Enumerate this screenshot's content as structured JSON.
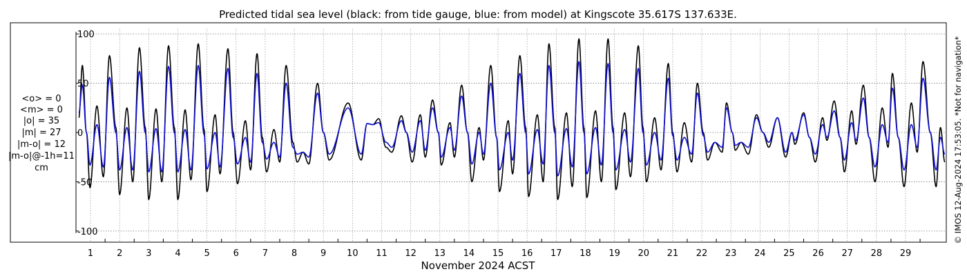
{
  "chart_data": {
    "type": "line",
    "title": "Predicted tidal sea level (black: from tide gauge, blue: from model) at Kingscote 35.617S 137.633E.",
    "xlabel": "November 2024 ACST",
    "ylabel": "",
    "xlim": [
      0.5,
      30.4
    ],
    "ylim": [
      -105,
      105
    ],
    "grid": true,
    "x_ticks": [
      1,
      2,
      3,
      4,
      5,
      6,
      7,
      8,
      9,
      10,
      11,
      12,
      13,
      14,
      15,
      16,
      17,
      18,
      19,
      20,
      21,
      22,
      23,
      24,
      25,
      26,
      27,
      28,
      29
    ],
    "x_tick_labels": [
      "1",
      "2",
      "3",
      "4",
      "5",
      "6",
      "7",
      "8",
      "9",
      "10",
      "11",
      "12",
      "13",
      "14",
      "15",
      "16",
      "17",
      "18",
      "19",
      "20",
      "21",
      "22",
      "23",
      "24",
      "25",
      "26",
      "27",
      "28",
      "29"
    ],
    "y_ticks": [
      100,
      50,
      0,
      -50,
      -100
    ],
    "y_tick_labels": [
      "100",
      "50",
      "0",
      "-50",
      "-100"
    ],
    "series": [
      {
        "color": "#000000",
        "extremes": [
          [
            0.6,
            15
          ],
          [
            0.72,
            68
          ],
          [
            0.86,
            0
          ],
          [
            0.98,
            -56
          ],
          [
            1.22,
            27
          ],
          [
            1.44,
            -45
          ],
          [
            1.65,
            78
          ],
          [
            1.87,
            5
          ],
          [
            2.0,
            -63
          ],
          [
            2.25,
            25
          ],
          [
            2.45,
            -50
          ],
          [
            2.68,
            86
          ],
          [
            2.88,
            5
          ],
          [
            3.0,
            -68
          ],
          [
            3.25,
            24
          ],
          [
            3.45,
            -50
          ],
          [
            3.68,
            88
          ],
          [
            3.88,
            5
          ],
          [
            4.0,
            -68
          ],
          [
            4.25,
            23
          ],
          [
            4.45,
            -48
          ],
          [
            4.7,
            90
          ],
          [
            4.9,
            3
          ],
          [
            5.0,
            -60
          ],
          [
            5.28,
            18
          ],
          [
            5.45,
            -42
          ],
          [
            5.72,
            85
          ],
          [
            5.9,
            0
          ],
          [
            6.05,
            -52
          ],
          [
            6.32,
            12
          ],
          [
            6.5,
            -38
          ],
          [
            6.72,
            80
          ],
          [
            6.9,
            -5
          ],
          [
            7.05,
            -40
          ],
          [
            7.3,
            3
          ],
          [
            7.5,
            -30
          ],
          [
            7.72,
            68
          ],
          [
            7.95,
            -10
          ],
          [
            8.1,
            -30
          ],
          [
            8.3,
            -20
          ],
          [
            8.5,
            -32
          ],
          [
            8.8,
            50
          ],
          [
            9.0,
            0
          ],
          [
            9.2,
            -28
          ],
          [
            9.85,
            30
          ],
          [
            10.3,
            -28
          ],
          [
            10.5,
            9
          ],
          [
            10.7,
            8
          ],
          [
            10.9,
            14
          ],
          [
            11.15,
            -15
          ],
          [
            11.35,
            -20
          ],
          [
            11.68,
            17
          ],
          [
            11.85,
            0
          ],
          [
            12.05,
            -30
          ],
          [
            12.33,
            18
          ],
          [
            12.5,
            -25
          ],
          [
            12.75,
            33
          ],
          [
            12.95,
            0
          ],
          [
            13.05,
            -33
          ],
          [
            13.35,
            10
          ],
          [
            13.5,
            -25
          ],
          [
            13.75,
            48
          ],
          [
            13.95,
            0
          ],
          [
            14.1,
            -50
          ],
          [
            14.35,
            5
          ],
          [
            14.5,
            -28
          ],
          [
            14.75,
            68
          ],
          [
            14.95,
            -5
          ],
          [
            15.05,
            -60
          ],
          [
            15.35,
            12
          ],
          [
            15.5,
            -42
          ],
          [
            15.75,
            78
          ],
          [
            15.95,
            5
          ],
          [
            16.05,
            -65
          ],
          [
            16.35,
            18
          ],
          [
            16.55,
            -50
          ],
          [
            16.75,
            90
          ],
          [
            16.95,
            5
          ],
          [
            17.05,
            -68
          ],
          [
            17.35,
            20
          ],
          [
            17.55,
            -55
          ],
          [
            17.78,
            95
          ],
          [
            17.95,
            5
          ],
          [
            18.05,
            -66
          ],
          [
            18.35,
            22
          ],
          [
            18.55,
            -50
          ],
          [
            18.78,
            95
          ],
          [
            18.95,
            5
          ],
          [
            19.05,
            -58
          ],
          [
            19.35,
            20
          ],
          [
            19.55,
            -45
          ],
          [
            19.82,
            88
          ],
          [
            19.98,
            5
          ],
          [
            20.1,
            -50
          ],
          [
            20.38,
            15
          ],
          [
            20.6,
            -38
          ],
          [
            20.85,
            70
          ],
          [
            21.0,
            0
          ],
          [
            21.15,
            -40
          ],
          [
            21.4,
            10
          ],
          [
            21.65,
            -30
          ],
          [
            21.85,
            50
          ],
          [
            22.05,
            0
          ],
          [
            22.2,
            -28
          ],
          [
            22.45,
            -10
          ],
          [
            22.7,
            -20
          ],
          [
            22.85,
            30
          ],
          [
            23.05,
            0
          ],
          [
            23.15,
            -18
          ],
          [
            23.35,
            -10
          ],
          [
            23.6,
            -22
          ],
          [
            23.88,
            18
          ],
          [
            24.1,
            0
          ],
          [
            24.3,
            -15
          ],
          [
            24.6,
            15
          ],
          [
            24.88,
            -25
          ],
          [
            25.1,
            0
          ],
          [
            25.2,
            -12
          ],
          [
            25.5,
            20
          ],
          [
            25.7,
            -5
          ],
          [
            25.9,
            -30
          ],
          [
            26.15,
            15
          ],
          [
            26.3,
            -8
          ],
          [
            26.55,
            32
          ],
          [
            26.75,
            -5
          ],
          [
            26.9,
            -40
          ],
          [
            27.15,
            22
          ],
          [
            27.3,
            -12
          ],
          [
            27.55,
            48
          ],
          [
            27.75,
            -5
          ],
          [
            27.95,
            -50
          ],
          [
            28.2,
            25
          ],
          [
            28.4,
            -15
          ],
          [
            28.55,
            60
          ],
          [
            28.75,
            -5
          ],
          [
            28.95,
            -55
          ],
          [
            29.2,
            30
          ],
          [
            29.4,
            -20
          ],
          [
            29.6,
            72
          ],
          [
            29.85,
            0
          ],
          [
            30.05,
            -55
          ],
          [
            30.2,
            5
          ],
          [
            30.35,
            -30
          ]
        ]
      },
      {
        "color": "#1010d0",
        "extremes": [
          [
            0.6,
            20
          ],
          [
            0.72,
            48
          ],
          [
            0.86,
            0
          ],
          [
            0.98,
            -33
          ],
          [
            1.22,
            8
          ],
          [
            1.44,
            -35
          ],
          [
            1.65,
            56
          ],
          [
            1.87,
            0
          ],
          [
            2.0,
            -38
          ],
          [
            2.25,
            5
          ],
          [
            2.45,
            -38
          ],
          [
            2.68,
            62
          ],
          [
            2.88,
            0
          ],
          [
            3.0,
            -40
          ],
          [
            3.25,
            4
          ],
          [
            3.45,
            -40
          ],
          [
            3.68,
            67
          ],
          [
            3.88,
            0
          ],
          [
            4.0,
            -40
          ],
          [
            4.25,
            3
          ],
          [
            4.45,
            -38
          ],
          [
            4.7,
            68
          ],
          [
            4.9,
            -2
          ],
          [
            5.0,
            -37
          ],
          [
            5.28,
            0
          ],
          [
            5.45,
            -35
          ],
          [
            5.72,
            65
          ],
          [
            5.9,
            -5
          ],
          [
            6.05,
            -32
          ],
          [
            6.32,
            -5
          ],
          [
            6.5,
            -30
          ],
          [
            6.72,
            60
          ],
          [
            6.9,
            -10
          ],
          [
            7.05,
            -27
          ],
          [
            7.3,
            -10
          ],
          [
            7.5,
            -25
          ],
          [
            7.72,
            50
          ],
          [
            7.95,
            -15
          ],
          [
            8.1,
            -22
          ],
          [
            8.3,
            -20
          ],
          [
            8.5,
            -25
          ],
          [
            8.8,
            40
          ],
          [
            9.0,
            0
          ],
          [
            9.2,
            -22
          ],
          [
            9.85,
            25
          ],
          [
            10.3,
            -22
          ],
          [
            10.5,
            9
          ],
          [
            10.7,
            8
          ],
          [
            10.9,
            10
          ],
          [
            11.15,
            -10
          ],
          [
            11.35,
            -15
          ],
          [
            11.68,
            12
          ],
          [
            11.85,
            0
          ],
          [
            12.05,
            -20
          ],
          [
            12.33,
            12
          ],
          [
            12.5,
            -18
          ],
          [
            12.75,
            25
          ],
          [
            12.95,
            0
          ],
          [
            13.05,
            -25
          ],
          [
            13.35,
            5
          ],
          [
            13.5,
            -18
          ],
          [
            13.75,
            37
          ],
          [
            13.95,
            0
          ],
          [
            14.1,
            -32
          ],
          [
            14.35,
            0
          ],
          [
            14.5,
            -22
          ],
          [
            14.75,
            50
          ],
          [
            14.95,
            -5
          ],
          [
            15.05,
            -38
          ],
          [
            15.35,
            0
          ],
          [
            15.5,
            -28
          ],
          [
            15.75,
            60
          ],
          [
            15.95,
            0
          ],
          [
            16.05,
            -42
          ],
          [
            16.35,
            3
          ],
          [
            16.55,
            -32
          ],
          [
            16.75,
            68
          ],
          [
            16.95,
            0
          ],
          [
            17.05,
            -44
          ],
          [
            17.35,
            4
          ],
          [
            17.55,
            -35
          ],
          [
            17.78,
            72
          ],
          [
            17.95,
            0
          ],
          [
            18.05,
            -42
          ],
          [
            18.35,
            5
          ],
          [
            18.55,
            -33
          ],
          [
            18.78,
            70
          ],
          [
            18.95,
            0
          ],
          [
            19.05,
            -38
          ],
          [
            19.35,
            3
          ],
          [
            19.55,
            -30
          ],
          [
            19.82,
            65
          ],
          [
            19.98,
            0
          ],
          [
            20.1,
            -33
          ],
          [
            20.38,
            0
          ],
          [
            20.6,
            -28
          ],
          [
            20.85,
            55
          ],
          [
            21.0,
            -3
          ],
          [
            21.15,
            -28
          ],
          [
            21.4,
            -5
          ],
          [
            21.65,
            -22
          ],
          [
            21.85,
            40
          ],
          [
            22.05,
            -3
          ],
          [
            22.2,
            -20
          ],
          [
            22.45,
            -10
          ],
          [
            22.7,
            -15
          ],
          [
            22.85,
            25
          ],
          [
            23.05,
            0
          ],
          [
            23.15,
            -13
          ],
          [
            23.35,
            -10
          ],
          [
            23.6,
            -15
          ],
          [
            23.88,
            15
          ],
          [
            24.1,
            0
          ],
          [
            24.3,
            -10
          ],
          [
            24.6,
            15
          ],
          [
            24.88,
            -20
          ],
          [
            25.1,
            0
          ],
          [
            25.2,
            -8
          ],
          [
            25.5,
            18
          ],
          [
            25.7,
            -5
          ],
          [
            25.9,
            -22
          ],
          [
            26.15,
            8
          ],
          [
            26.3,
            -5
          ],
          [
            26.55,
            22
          ],
          [
            26.75,
            -5
          ],
          [
            26.9,
            -28
          ],
          [
            27.15,
            10
          ],
          [
            27.3,
            -8
          ],
          [
            27.55,
            35
          ],
          [
            27.75,
            -5
          ],
          [
            27.95,
            -35
          ],
          [
            28.2,
            8
          ],
          [
            28.4,
            -10
          ],
          [
            28.55,
            45
          ],
          [
            28.75,
            -5
          ],
          [
            28.95,
            -38
          ],
          [
            29.2,
            8
          ],
          [
            29.4,
            -15
          ],
          [
            29.6,
            55
          ],
          [
            29.85,
            0
          ],
          [
            30.05,
            -38
          ],
          [
            30.2,
            -5
          ],
          [
            30.35,
            -22
          ]
        ]
      }
    ]
  },
  "stats": {
    "lines": [
      "<o> = 0",
      "<m> = 0",
      "|o| = 35",
      "|m| = 27",
      "|m-o| = 12",
      "|m-o|@-1h=11",
      "cm"
    ]
  },
  "copyright": "© IMOS 12-Aug-2024 17:53:05. *Not for navigation*"
}
